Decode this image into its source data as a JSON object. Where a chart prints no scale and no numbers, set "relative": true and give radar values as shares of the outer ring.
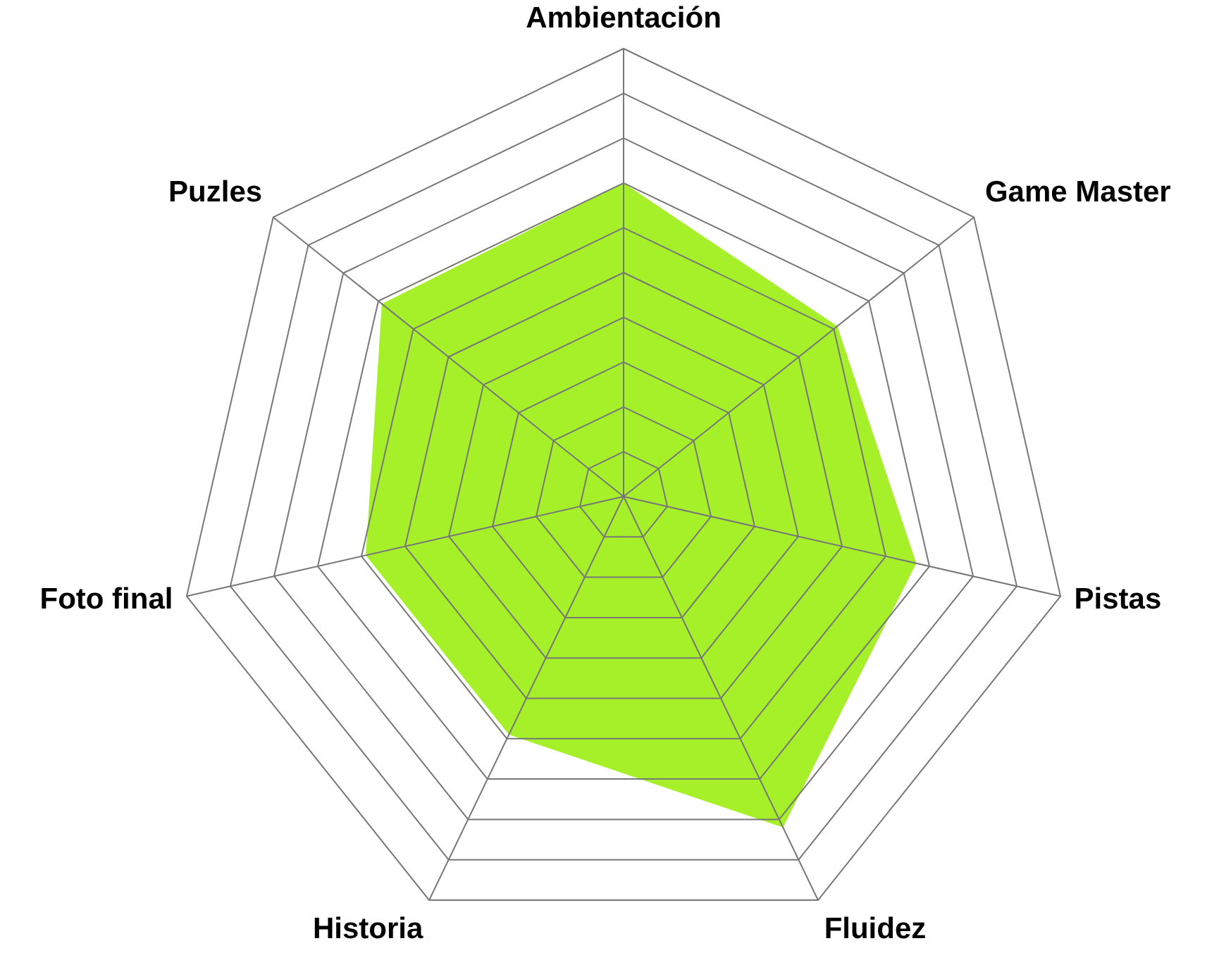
{
  "chart_data": {
    "type": "radar",
    "relative": true,
    "grid": true,
    "categories": [
      "Ambientación",
      "Game Master",
      "Pistas",
      "Fluidez",
      "Historia",
      "Foto final",
      "Puzles"
    ],
    "series": [
      {
        "color": "#a6f02a",
        "values": [
          0.7,
          0.61,
          0.67,
          0.82,
          0.59,
          0.59,
          0.69
        ]
      }
    ]
  }
}
